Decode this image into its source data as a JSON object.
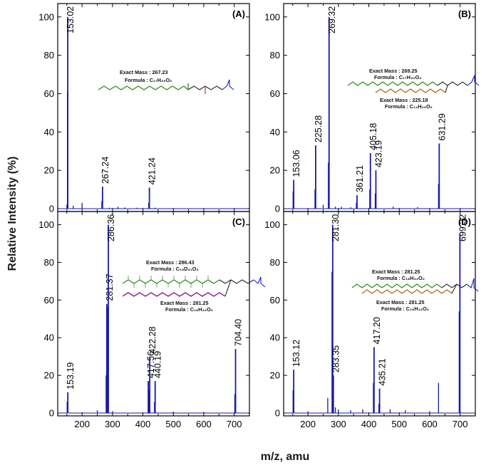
{
  "figure": {
    "ylabel": "Relative Intensity (%)",
    "xlabel": "m/z, amu"
  },
  "colors": {
    "spectrum": "#1a1aa8",
    "green_chain": "#2e8b1e",
    "brown_chain": "#b5651d",
    "purple_chain": "#800080",
    "phosphate": "#1a1ad0",
    "hydroxyl": "#d02020"
  },
  "chart_data": [
    {
      "type": "bar",
      "panel": "(A)",
      "xlim": [
        120,
        750
      ],
      "ylim": [
        0,
        104
      ],
      "xticks": [
        200,
        300,
        400,
        500,
        600,
        700
      ],
      "yticks": [
        0,
        20,
        40,
        60,
        80,
        100
      ],
      "peaks": [
        {
          "x": 153.02,
          "y": 100,
          "label": "153.02"
        },
        {
          "x": 267.24,
          "y": 11.5,
          "label": "267.24"
        },
        {
          "x": 421.24,
          "y": 11,
          "label": "421.24"
        }
      ],
      "minor_peaks": [
        {
          "x": 150,
          "y": 2
        },
        {
          "x": 152,
          "y": 61
        },
        {
          "x": 171,
          "y": 1.5
        },
        {
          "x": 200,
          "y": 3
        },
        {
          "x": 265,
          "y": 4
        },
        {
          "x": 290,
          "y": 0.5
        },
        {
          "x": 318,
          "y": 1
        },
        {
          "x": 340,
          "y": 0.6
        },
        {
          "x": 380,
          "y": 0.5
        },
        {
          "x": 419,
          "y": 3
        },
        {
          "x": 440,
          "y": 0.5
        }
      ],
      "annotations": [
        {
          "exact_mass": "Exact Mass : 267.23",
          "formula": "Formula : C₁₇H₃₅O₂"
        }
      ]
    },
    {
      "type": "bar",
      "panel": "(B)",
      "xlim": [
        120,
        750
      ],
      "ylim": [
        0,
        104
      ],
      "xticks": [
        200,
        300,
        400,
        500,
        600,
        700
      ],
      "yticks": [
        0,
        20,
        40,
        60,
        80,
        100
      ],
      "peaks": [
        {
          "x": 153.06,
          "y": 15,
          "label": "153.06"
        },
        {
          "x": 225.28,
          "y": 33,
          "label": "225.28"
        },
        {
          "x": 269.32,
          "y": 100,
          "label": "269.32"
        },
        {
          "x": 361.21,
          "y": 7,
          "label": "361.21"
        },
        {
          "x": 405.18,
          "y": 29,
          "label": "405.18"
        },
        {
          "x": 423.19,
          "y": 20,
          "label": "423.19"
        },
        {
          "x": 631.29,
          "y": 34,
          "label": "631.29"
        }
      ],
      "minor_peaks": [
        {
          "x": 151,
          "y": 9
        },
        {
          "x": 223,
          "y": 10
        },
        {
          "x": 250,
          "y": 2
        },
        {
          "x": 267,
          "y": 24
        },
        {
          "x": 290,
          "y": 1
        },
        {
          "x": 310,
          "y": 1
        },
        {
          "x": 340,
          "y": 0.7
        },
        {
          "x": 359,
          "y": 3
        },
        {
          "x": 403,
          "y": 10
        },
        {
          "x": 421,
          "y": 8
        },
        {
          "x": 480,
          "y": 1
        },
        {
          "x": 560,
          "y": 0.8
        },
        {
          "x": 629,
          "y": 13
        }
      ],
      "annotations": [
        {
          "exact_mass": "Exact Mass : 269.25",
          "formula": "Formula : C₁₇H₃₃O₂"
        },
        {
          "exact_mass": "Exact Mass : 225.18",
          "formula": "Formula : C₁₄H₂₉O₂"
        }
      ]
    },
    {
      "type": "bar",
      "panel": "(C)",
      "xlim": [
        120,
        750
      ],
      "ylim": [
        0,
        104
      ],
      "xticks": [
        200,
        300,
        400,
        500,
        600,
        700
      ],
      "yticks": [
        0,
        20,
        40,
        60,
        80,
        100
      ],
      "peaks": [
        {
          "x": 153.19,
          "y": 11,
          "label": "153.19"
        },
        {
          "x": 281.37,
          "y": 58,
          "label": "281.37"
        },
        {
          "x": 286.36,
          "y": 100,
          "label": "286.36"
        },
        {
          "x": 417.56,
          "y": 17,
          "label": "417.56"
        },
        {
          "x": 422.28,
          "y": 30,
          "label": "422.28"
        },
        {
          "x": 440.19,
          "y": 17,
          "label": "440.19"
        },
        {
          "x": 704.4,
          "y": 34,
          "label": "704.40"
        }
      ],
      "minor_peaks": [
        {
          "x": 151,
          "y": 6
        },
        {
          "x": 250,
          "y": 1.5
        },
        {
          "x": 279,
          "y": 20
        },
        {
          "x": 284,
          "y": 56
        },
        {
          "x": 300,
          "y": 1
        },
        {
          "x": 420,
          "y": 12
        },
        {
          "x": 438,
          "y": 6
        },
        {
          "x": 500,
          "y": 0.8
        },
        {
          "x": 600,
          "y": 0.6
        },
        {
          "x": 702,
          "y": 10
        }
      ],
      "annotations": [
        {
          "exact_mass": "Exact Mass : 286.43",
          "formula": "Formula : C₁₈D₃₁O₂"
        },
        {
          "exact_mass": "Exact Mass : 281.25",
          "formula": "Formula : C₁₈H₃₃O₂"
        }
      ]
    },
    {
      "type": "bar",
      "panel": "(D)",
      "xlim": [
        120,
        750
      ],
      "ylim": [
        0,
        104
      ],
      "xticks": [
        200,
        300,
        400,
        500,
        600,
        700
      ],
      "yticks": [
        0,
        20,
        40,
        60,
        80,
        100
      ],
      "peaks": [
        {
          "x": 153.12,
          "y": 23,
          "label": "153.12"
        },
        {
          "x": 281.3,
          "y": 100,
          "label": "281.30"
        },
        {
          "x": 283.35,
          "y": 20,
          "label": "283.35"
        },
        {
          "x": 417.2,
          "y": 35,
          "label": "417.20"
        },
        {
          "x": 435.21,
          "y": 13,
          "label": "435.21"
        },
        {
          "x": 699.32,
          "y": 95,
          "label": "699.32"
        }
      ],
      "minor_peaks": [
        {
          "x": 151,
          "y": 12
        },
        {
          "x": 200,
          "y": 1
        },
        {
          "x": 265,
          "y": 8
        },
        {
          "x": 279,
          "y": 75
        },
        {
          "x": 290,
          "y": 3
        },
        {
          "x": 300,
          "y": 2
        },
        {
          "x": 340,
          "y": 1.5
        },
        {
          "x": 380,
          "y": 2
        },
        {
          "x": 415,
          "y": 16
        },
        {
          "x": 433,
          "y": 5
        },
        {
          "x": 470,
          "y": 2
        },
        {
          "x": 520,
          "y": 1.5
        },
        {
          "x": 600,
          "y": 1
        },
        {
          "x": 629,
          "y": 16
        },
        {
          "x": 697,
          "y": 54
        }
      ],
      "annotations": [
        {
          "exact_mass": "Exact Mass : 281.25",
          "formula": "Formula : C₁₈H₃₃O₂"
        },
        {
          "exact_mass": "Exact Mass : 281.25",
          "formula": "Formula : C₁₈H₃₃O₂"
        }
      ]
    }
  ]
}
